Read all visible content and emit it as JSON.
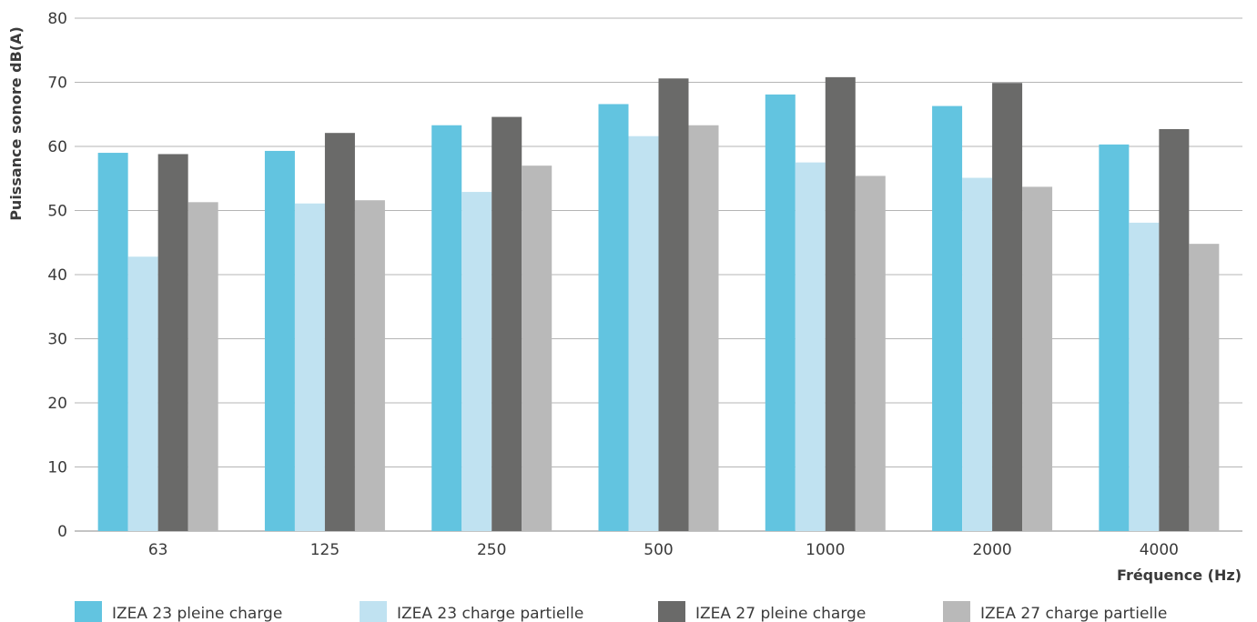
{
  "chart_data": {
    "type": "bar",
    "ylabel": "Puissance sonore dB(A)",
    "xlabel": "Fréquence (Hz)",
    "ylim": [
      0,
      80
    ],
    "yticks": [
      "0",
      "10",
      "20",
      "30",
      "40",
      "50",
      "60",
      "70",
      "80"
    ],
    "grid": true,
    "legend_position": "bottom",
    "categories": [
      "63",
      "125",
      "250",
      "500",
      "1000",
      "2000",
      "4000"
    ],
    "series": [
      {
        "name": "IZEA 23 pleine charge",
        "color": "#62C4E0",
        "values": [
          59.0,
          59.3,
          63.3,
          66.6,
          68.1,
          66.3,
          60.3
        ]
      },
      {
        "name": "IZEA 23 charge partielle",
        "color": "#C0E2F1",
        "values": [
          42.8,
          51.1,
          52.9,
          61.6,
          57.5,
          55.1,
          48.1
        ]
      },
      {
        "name": "IZEA 27 pleine charge",
        "color": "#6A6A69",
        "values": [
          58.8,
          62.1,
          64.6,
          70.6,
          70.8,
          69.9,
          62.7
        ]
      },
      {
        "name": "IZEA 27 charge partielle",
        "color": "#B9B9B9",
        "values": [
          51.3,
          51.6,
          57.0,
          63.3,
          55.4,
          53.7,
          44.8
        ]
      }
    ]
  }
}
